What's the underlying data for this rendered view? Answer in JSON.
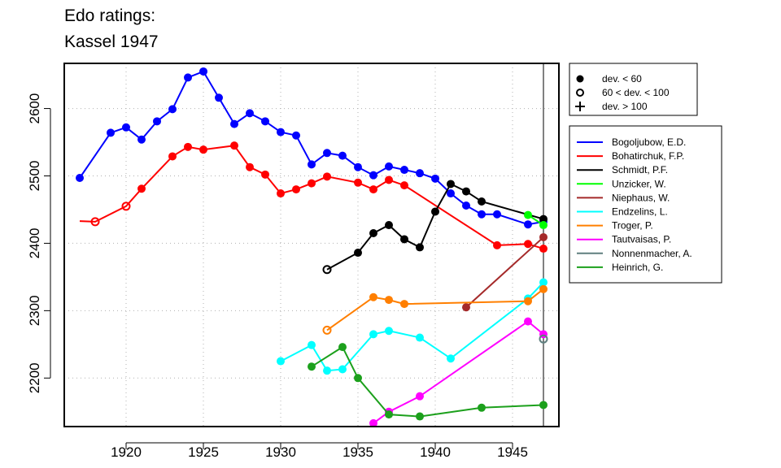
{
  "chart_data": {
    "type": "line",
    "title": [
      "Edo ratings:",
      "Kassel 1947"
    ],
    "xlim": [
      1916,
      1948
    ],
    "ylim": [
      2128,
      2667
    ],
    "x_ticks": [
      1920,
      1925,
      1930,
      1935,
      1940,
      1945
    ],
    "y_ticks": [
      2200,
      2300,
      2400,
      2500,
      2600
    ],
    "grid": true,
    "reference_line_x": 1947,
    "marker_legend": [
      {
        "symbol": "filled-circle",
        "label": "dev. < 60"
      },
      {
        "symbol": "open-circle",
        "label": "60 < dev. < 100"
      },
      {
        "symbol": "plus",
        "label": "dev. > 100"
      }
    ],
    "series": [
      {
        "name": "Bogoljubow, E.D.",
        "color": "#0000ff",
        "points": [
          [
            1917,
            2497,
            "f"
          ],
          [
            1919,
            2564,
            "f"
          ],
          [
            1920,
            2572,
            "f"
          ],
          [
            1921,
            2554,
            "f"
          ],
          [
            1922,
            2581,
            "f"
          ],
          [
            1923,
            2599,
            "f"
          ],
          [
            1924,
            2646,
            "f"
          ],
          [
            1925,
            2655,
            "f"
          ],
          [
            1926,
            2616,
            "f"
          ],
          [
            1927,
            2577,
            "f"
          ],
          [
            1928,
            2593,
            "f"
          ],
          [
            1929,
            2581,
            "f"
          ],
          [
            1930,
            2565,
            "f"
          ],
          [
            1931,
            2560,
            "f"
          ],
          [
            1932,
            2517,
            "f"
          ],
          [
            1933,
            2534,
            "f"
          ],
          [
            1934,
            2530,
            "f"
          ],
          [
            1935,
            2513,
            "f"
          ],
          [
            1936,
            2501,
            "f"
          ],
          [
            1937,
            2514,
            "f"
          ],
          [
            1938,
            2509,
            "f"
          ],
          [
            1939,
            2504,
            "f"
          ],
          [
            1940,
            2496,
            "f"
          ],
          [
            1941,
            2474,
            "f"
          ],
          [
            1942,
            2456,
            "f"
          ],
          [
            1943,
            2443,
            "f"
          ],
          [
            1944,
            2443,
            "f"
          ],
          [
            1946,
            2428,
            "f"
          ],
          [
            1947,
            2432,
            "f"
          ]
        ]
      },
      {
        "name": "Bohatirchuk, F.P.",
        "color": "#ff0000",
        "points": [
          [
            1917,
            2433,
            "n"
          ],
          [
            1918,
            2432,
            "o"
          ],
          [
            1920,
            2455,
            "o"
          ],
          [
            1921,
            2481,
            "f"
          ],
          [
            1923,
            2529,
            "f"
          ],
          [
            1924,
            2543,
            "f"
          ],
          [
            1925,
            2539,
            "f"
          ],
          [
            1927,
            2545,
            "f"
          ],
          [
            1928,
            2513,
            "f"
          ],
          [
            1929,
            2502,
            "f"
          ],
          [
            1930,
            2474,
            "f"
          ],
          [
            1931,
            2480,
            "f"
          ],
          [
            1932,
            2489,
            "f"
          ],
          [
            1933,
            2499,
            "f"
          ],
          [
            1935,
            2490,
            "f"
          ],
          [
            1936,
            2480,
            "f"
          ],
          [
            1937,
            2494,
            "f"
          ],
          [
            1938,
            2486,
            "f"
          ],
          [
            1944,
            2397,
            "f"
          ],
          [
            1946,
            2399,
            "f"
          ],
          [
            1947,
            2392,
            "f"
          ]
        ]
      },
      {
        "name": "Schmidt, P.F.",
        "color": "#000000",
        "points": [
          [
            1933,
            2361,
            "o"
          ],
          [
            1935,
            2386,
            "f"
          ],
          [
            1936,
            2415,
            "f"
          ],
          [
            1937,
            2427,
            "f"
          ],
          [
            1938,
            2406,
            "f"
          ],
          [
            1939,
            2394,
            "f"
          ],
          [
            1940,
            2447,
            "f"
          ],
          [
            1941,
            2488,
            "f"
          ],
          [
            1942,
            2477,
            "f"
          ],
          [
            1943,
            2462,
            "f"
          ],
          [
            1947,
            2436,
            "f"
          ]
        ]
      },
      {
        "name": "Unzicker, W.",
        "color": "#00ff00",
        "points": [
          [
            1946,
            2442,
            "f"
          ],
          [
            1947,
            2427,
            "f"
          ]
        ]
      },
      {
        "name": "Niephaus, W.",
        "color": "#a52a2a",
        "points": [
          [
            1942,
            2305,
            "f"
          ],
          [
            1947,
            2409,
            "f"
          ]
        ]
      },
      {
        "name": "Endzelins, L.",
        "color": "#00ffff",
        "points": [
          [
            1930,
            2225,
            "f"
          ],
          [
            1932,
            2249,
            "f"
          ],
          [
            1933,
            2211,
            "f"
          ],
          [
            1934,
            2213,
            "f"
          ],
          [
            1936,
            2265,
            "f"
          ],
          [
            1937,
            2270,
            "f"
          ],
          [
            1939,
            2260,
            "f"
          ],
          [
            1941,
            2229,
            "f"
          ],
          [
            1946,
            2318,
            "f"
          ],
          [
            1947,
            2342,
            "f"
          ]
        ]
      },
      {
        "name": "Troger, P.",
        "color": "#ff7f00",
        "points": [
          [
            1933,
            2271,
            "o"
          ],
          [
            1936,
            2320,
            "f"
          ],
          [
            1937,
            2316,
            "f"
          ],
          [
            1938,
            2310,
            "f"
          ],
          [
            1946,
            2314,
            "f"
          ],
          [
            1947,
            2332,
            "f"
          ]
        ]
      },
      {
        "name": "Tautvaisas, P.",
        "color": "#ff00ff",
        "points": [
          [
            1936,
            2133,
            "f"
          ],
          [
            1937,
            2150,
            "f"
          ],
          [
            1939,
            2173,
            "f"
          ],
          [
            1946,
            2284,
            "f"
          ],
          [
            1947,
            2265,
            "f"
          ]
        ]
      },
      {
        "name": "Nonnenmacher, A.",
        "color": "#5f7f7f",
        "points": [
          [
            1947,
            2258,
            "o"
          ]
        ]
      },
      {
        "name": "Heinrich, G.",
        "color": "#1ca01c",
        "points": [
          [
            1932,
            2217,
            "f"
          ],
          [
            1934,
            2246,
            "f"
          ],
          [
            1935,
            2200,
            "f"
          ],
          [
            1937,
            2146,
            "f"
          ],
          [
            1939,
            2143,
            "f"
          ],
          [
            1943,
            2156,
            "f"
          ],
          [
            1947,
            2160,
            "f"
          ]
        ]
      }
    ]
  }
}
